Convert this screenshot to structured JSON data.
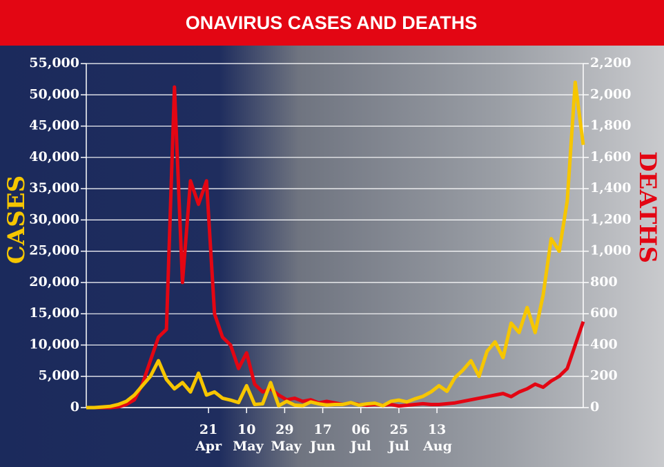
{
  "chart_data": {
    "type": "line",
    "title": "ONAVIRUS CASES AND DEATHS",
    "y_label": "CASES",
    "y2_label": "DEATHS",
    "x": [
      0,
      4,
      8,
      12,
      16,
      20,
      24,
      28,
      32,
      36,
      40,
      44,
      48,
      52,
      56,
      60,
      64,
      68,
      72,
      76,
      80,
      84,
      88,
      92,
      96,
      100,
      104,
      108,
      112,
      116,
      120,
      124,
      128,
      132,
      136,
      140,
      144,
      148,
      152,
      156,
      160,
      164,
      168,
      172,
      176,
      180,
      184,
      188,
      192,
      196,
      200,
      204,
      208,
      212,
      216,
      220,
      224,
      228,
      232,
      236,
      240,
      244,
      248
    ],
    "xlim": [
      0,
      248
    ],
    "xticks": [
      {
        "value": 61,
        "label": "21 Apr"
      },
      {
        "value": 80,
        "label": "10 May"
      },
      {
        "value": 99,
        "label": "29 May"
      },
      {
        "value": 118,
        "label": "17 Jun"
      },
      {
        "value": 137,
        "label": "06 Jul"
      },
      {
        "value": 156,
        "label": "25 Jul"
      },
      {
        "value": 175,
        "label": "13 Aug"
      }
    ],
    "ylim": [
      0,
      55000
    ],
    "yticks": [
      0,
      {
        "value": 5000,
        "label": "5,000"
      },
      {
        "value": 10000,
        "label": "10,000"
      },
      {
        "value": 15000,
        "label": "15,000"
      },
      {
        "value": 20000,
        "label": "20,000"
      },
      {
        "value": 25000,
        "label": "25,000"
      },
      {
        "value": 30000,
        "label": "30,000"
      },
      {
        "value": 35000,
        "label": "35,000"
      },
      {
        "value": 40000,
        "label": "40,000"
      },
      {
        "value": 45000,
        "label": "45,000"
      },
      {
        "value": 50000,
        "label": "50,000"
      },
      {
        "value": 55000,
        "label": "55,000"
      }
    ],
    "y2lim": [
      0,
      2200
    ],
    "y2ticks": [
      0,
      200,
      400,
      600,
      800,
      {
        "value": 1000,
        "label": "1,000"
      },
      {
        "value": 1200,
        "label": "1,200"
      },
      {
        "value": 1400,
        "label": "1,400"
      },
      {
        "value": 1600,
        "label": "1,600"
      },
      {
        "value": 1800,
        "label": "1,800"
      },
      {
        "value": 2000,
        "label": "2,000"
      },
      {
        "value": 2200,
        "label": "2,200"
      }
    ],
    "grid": true,
    "series": [
      {
        "name": "DEATHS",
        "color": "#e30613",
        "axis": "y2",
        "values": [
          0,
          0,
          0,
          0,
          5,
          20,
          50,
          150,
          300,
          450,
          500,
          2050,
          800,
          1450,
          1300,
          1450,
          600,
          450,
          400,
          250,
          350,
          150,
          100,
          120,
          80,
          50,
          60,
          40,
          50,
          30,
          40,
          30,
          20,
          30,
          20,
          15,
          20,
          15,
          20,
          10,
          15,
          20,
          25,
          20,
          20,
          25,
          30,
          40,
          50,
          60,
          70,
          80,
          90,
          70,
          100,
          120,
          150,
          130,
          170,
          200,
          250,
          400,
          550
        ]
      },
      {
        "name": "CASES",
        "color": "#f6c600",
        "values": [
          0,
          0,
          100,
          200,
          500,
          1000,
          2000,
          3500,
          5000,
          7500,
          4500,
          3000,
          4000,
          2500,
          5500,
          2000,
          2500,
          1500,
          1200,
          800,
          3500,
          500,
          600,
          4000,
          300,
          1000,
          400,
          300,
          900,
          600,
          400,
          500,
          500,
          800,
          400,
          600,
          700,
          300,
          1000,
          1200,
          900,
          1400,
          1800,
          2500,
          3500,
          2600,
          4800,
          6000,
          7500,
          5000,
          9000,
          10500,
          8000,
          13500,
          12000,
          16000,
          12000,
          18000,
          27000,
          25000,
          33000,
          52000,
          42000
        ]
      }
    ]
  }
}
